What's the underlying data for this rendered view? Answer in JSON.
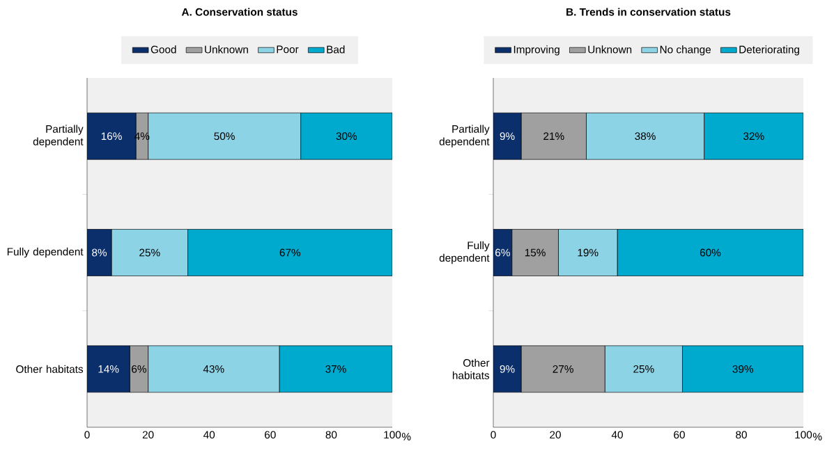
{
  "chart_data": [
    {
      "type": "bar",
      "orientation": "horizontal",
      "stacked": true,
      "title": "A. Conservation status",
      "xlabel": "%",
      "legend": "top",
      "categories": [
        "Partially dependent",
        "Fully dependent",
        "Other habitats"
      ],
      "xlim": [
        0,
        100
      ],
      "xticks": [
        0,
        20,
        40,
        60,
        80,
        100
      ],
      "series": [
        {
          "name": "Good",
          "color": "#0b2f6b",
          "values": [
            16,
            8,
            14
          ],
          "value_labels": [
            "16%",
            "8%",
            "14%"
          ]
        },
        {
          "name": "Unknown",
          "color": "#a0a0a0",
          "values": [
            4,
            0,
            6
          ],
          "value_labels": [
            "4%",
            null,
            "6%"
          ]
        },
        {
          "name": "Poor",
          "color": "#8dd3e6",
          "values": [
            50,
            25,
            43
          ],
          "value_labels": [
            "50%",
            "25%",
            "43%"
          ]
        },
        {
          "name": "Bad",
          "color": "#00a9ce",
          "values": [
            30,
            67,
            37
          ],
          "value_labels": [
            "30%",
            "67%",
            "37%"
          ]
        }
      ]
    },
    {
      "type": "bar",
      "orientation": "horizontal",
      "stacked": true,
      "title": "B. Trends in conservation status",
      "xlabel": "%",
      "legend": "top",
      "categories": [
        "Partially dependent",
        "Fully dependent",
        "Other habitats"
      ],
      "xlim": [
        0,
        100
      ],
      "xticks": [
        0,
        20,
        40,
        60,
        80,
        100
      ],
      "series": [
        {
          "name": "Improving",
          "color": "#0b2f6b",
          "values": [
            9,
            6,
            9
          ],
          "value_labels": [
            "9%",
            "6%",
            "9%"
          ]
        },
        {
          "name": "Unknown",
          "color": "#a0a0a0",
          "values": [
            21,
            15,
            27
          ],
          "value_labels": [
            "21%",
            "15%",
            "27%"
          ]
        },
        {
          "name": "No change",
          "color": "#8dd3e6",
          "values": [
            38,
            19,
            25
          ],
          "value_labels": [
            "38%",
            "19%",
            "25%"
          ]
        },
        {
          "name": "Deteriorating",
          "color": "#00a9ce",
          "values": [
            32,
            60,
            39
          ],
          "value_labels": [
            "32%",
            "60%",
            "39%"
          ]
        }
      ]
    }
  ]
}
